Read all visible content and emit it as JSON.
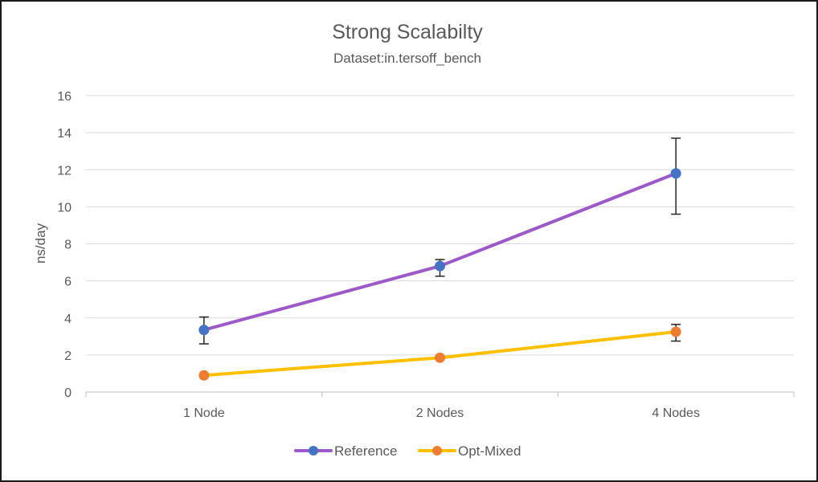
{
  "chart_data": {
    "type": "line",
    "title": "Strong Scalabilty",
    "subtitle": "Dataset:in.tersoff_bench",
    "xlabel": "",
    "ylabel": "ns/day",
    "categories": [
      "1 Node",
      "2 Nodes",
      "4 Nodes"
    ],
    "ylim": [
      0,
      16
    ],
    "yticks": [
      0,
      2,
      4,
      6,
      8,
      10,
      12,
      14,
      16
    ],
    "grid": true,
    "legend_position": "bottom",
    "series": [
      {
        "name": "Reference",
        "values": [
          3.35,
          6.8,
          11.8
        ],
        "error_low": [
          2.6,
          6.25,
          9.6
        ],
        "error_high": [
          4.05,
          7.15,
          13.7
        ],
        "line_color": "#9b59c9",
        "marker_color": "#4472c4"
      },
      {
        "name": "Opt-Mixed",
        "values": [
          0.9,
          1.85,
          3.25
        ],
        "error_low": [
          0.85,
          1.8,
          2.75
        ],
        "error_high": [
          0.95,
          1.9,
          3.65
        ],
        "line_color": "#ffc000",
        "marker_color": "#ed7d31"
      }
    ]
  }
}
